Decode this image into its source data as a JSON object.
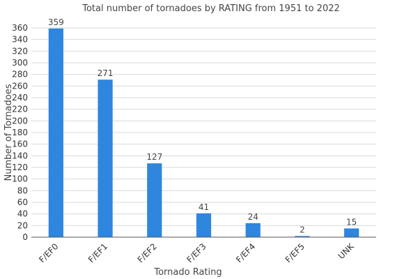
{
  "chart_data": {
    "type": "bar",
    "title": "Total number of tornadoes by RATING from 1951 to 2022",
    "xlabel": "Tornado Rating",
    "ylabel": "Number of Tornadoes",
    "categories": [
      "F/EF0",
      "F/EF1",
      "F/EF2",
      "F/EF3",
      "F/EF4",
      "F/EF5",
      "UNK"
    ],
    "values": [
      359,
      271,
      127,
      41,
      24,
      2,
      15
    ],
    "ylim": [
      0,
      360
    ],
    "yticks": [
      0,
      20,
      40,
      60,
      80,
      100,
      120,
      140,
      160,
      180,
      200,
      220,
      240,
      260,
      280,
      300,
      320,
      340,
      360
    ],
    "grid": true,
    "legend": "none",
    "bar_color": "#2e86de"
  }
}
